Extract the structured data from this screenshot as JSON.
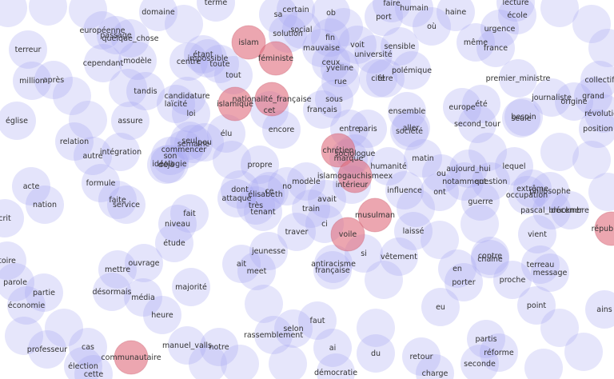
{
  "colors": {
    "bubble": "#a7a7f2",
    "highlight": "#e0707f",
    "highlight_stroke": "#c85a6a",
    "text": "#333333"
  },
  "words": [
    {
      "label": "domaine",
      "highlight": false
    },
    {
      "label": "terme",
      "highlight": false
    },
    {
      "label": "sa",
      "highlight": false
    },
    {
      "label": "certain",
      "highlight": false
    },
    {
      "label": "ob",
      "highlight": false
    },
    {
      "label": "faire",
      "highlight": false
    },
    {
      "label": "port",
      "highlight": false
    },
    {
      "label": "humain",
      "highlight": false
    },
    {
      "label": "haine",
      "highlight": false
    },
    {
      "label": "lecture",
      "highlight": false
    },
    {
      "label": "école",
      "highlight": false
    },
    {
      "label": "européenne",
      "highlight": false
    },
    {
      "label": "passage",
      "highlight": false
    },
    {
      "label": "quelque_chose",
      "highlight": false
    },
    {
      "label": "social",
      "highlight": false
    },
    {
      "label": "solution",
      "highlight": false
    },
    {
      "label": "fin",
      "highlight": false
    },
    {
      "label": "où",
      "highlight": false
    },
    {
      "label": "urgence",
      "highlight": false
    },
    {
      "label": "islam",
      "highlight": true
    },
    {
      "label": "voit",
      "highlight": false
    },
    {
      "label": "sensible",
      "highlight": false
    },
    {
      "label": "même",
      "highlight": false
    },
    {
      "label": "terreur",
      "highlight": false
    },
    {
      "label": "mauvaise",
      "highlight": false
    },
    {
      "label": "université",
      "highlight": false
    },
    {
      "label": "france",
      "highlight": false
    },
    {
      "label": "étant",
      "highlight": false
    },
    {
      "label": "féministe",
      "highlight": true
    },
    {
      "label": "modèle",
      "highlight": false
    },
    {
      "label": "cependant",
      "highlight": false
    },
    {
      "label": "impossible",
      "highlight": false
    },
    {
      "label": "centre",
      "highlight": false
    },
    {
      "label": "toute",
      "highlight": false
    },
    {
      "label": "ceux",
      "highlight": false
    },
    {
      "label": "yveline",
      "highlight": false
    },
    {
      "label": "polémique",
      "highlight": false
    },
    {
      "label": "tout",
      "highlight": false
    },
    {
      "label": "cité",
      "highlight": false
    },
    {
      "label": "être",
      "highlight": false
    },
    {
      "label": "million",
      "highlight": false
    },
    {
      "label": "après",
      "highlight": false
    },
    {
      "label": "rue",
      "highlight": false
    },
    {
      "label": "premier_ministre",
      "highlight": false
    },
    {
      "label": "collectif",
      "highlight": false
    },
    {
      "label": "tandis",
      "highlight": false
    },
    {
      "label": "candidature",
      "highlight": false
    },
    {
      "label": "nationalité_française",
      "highlight": true
    },
    {
      "label": "sous",
      "highlight": false
    },
    {
      "label": "journaliste",
      "highlight": false
    },
    {
      "label": "grand",
      "highlight": false
    },
    {
      "label": "origine",
      "highlight": false
    },
    {
      "label": "laïcité",
      "highlight": false
    },
    {
      "label": "islamique",
      "highlight": true
    },
    {
      "label": "été",
      "highlight": false
    },
    {
      "label": "europe",
      "highlight": false
    },
    {
      "label": "loi",
      "highlight": false
    },
    {
      "label": "cet",
      "highlight": false
    },
    {
      "label": "français",
      "highlight": false
    },
    {
      "label": "ensemble",
      "highlight": false
    },
    {
      "label": "besoin",
      "highlight": false
    },
    {
      "label": "seule",
      "highlight": false
    },
    {
      "label": "révolution",
      "highlight": false
    },
    {
      "label": "église",
      "highlight": false
    },
    {
      "label": "assure",
      "highlight": false
    },
    {
      "label": "encore",
      "highlight": false
    },
    {
      "label": "entre",
      "highlight": false
    },
    {
      "label": "paris",
      "highlight": false
    },
    {
      "label": "aller",
      "highlight": false
    },
    {
      "label": "société",
      "highlight": false
    },
    {
      "label": "second_tour",
      "highlight": false
    },
    {
      "label": "position",
      "highlight": false
    },
    {
      "label": "élu",
      "highlight": false
    },
    {
      "label": "seul",
      "highlight": false
    },
    {
      "label": "semaine",
      "highlight": false
    },
    {
      "label": "relation",
      "highlight": false
    },
    {
      "label": "peu",
      "highlight": false
    },
    {
      "label": "chrétien",
      "highlight": true
    },
    {
      "label": "commencer",
      "highlight": false
    },
    {
      "label": "sociologue",
      "highlight": false
    },
    {
      "label": "intégration",
      "highlight": false
    },
    {
      "label": "son",
      "highlight": false
    },
    {
      "label": "marque",
      "highlight": false
    },
    {
      "label": "autre",
      "highlight": false
    },
    {
      "label": "matin",
      "highlight": false
    },
    {
      "label": "idéologie",
      "highlight": false
    },
    {
      "label": "déjà",
      "highlight": false
    },
    {
      "label": "humanité",
      "highlight": false
    },
    {
      "label": "propre",
      "highlight": false
    },
    {
      "label": "lequel",
      "highlight": false
    },
    {
      "label": "aujourd_hui",
      "highlight": false
    },
    {
      "label": "islamogauchismeex",
      "highlight": true
    },
    {
      "label": "ou",
      "highlight": false
    },
    {
      "label": "formule",
      "highlight": false
    },
    {
      "label": "modèle",
      "highlight": false
    },
    {
      "label": "intérieur",
      "highlight": false
    },
    {
      "label": "notamment",
      "highlight": false
    },
    {
      "label": "question",
      "highlight": false
    },
    {
      "label": "acte",
      "highlight": false
    },
    {
      "label": "dont",
      "highlight": false
    },
    {
      "label": "ce",
      "highlight": false
    },
    {
      "label": "influence",
      "highlight": false
    },
    {
      "label": "ont",
      "highlight": false
    },
    {
      "label": "extrême",
      "highlight": false
    },
    {
      "label": "philosophe",
      "highlight": false
    },
    {
      "label": "occupation",
      "highlight": false
    },
    {
      "label": "élisabeth",
      "highlight": false
    },
    {
      "label": "no",
      "highlight": false
    },
    {
      "label": "faite",
      "highlight": false
    },
    {
      "label": "attaque",
      "highlight": false
    },
    {
      "label": "avait",
      "highlight": false
    },
    {
      "label": "guerre",
      "highlight": false
    },
    {
      "label": "nation",
      "highlight": false
    },
    {
      "label": "service",
      "highlight": false
    },
    {
      "label": "très",
      "highlight": false
    },
    {
      "label": "train",
      "highlight": false
    },
    {
      "label": "tenant",
      "highlight": false
    },
    {
      "label": "musulman",
      "highlight": true
    },
    {
      "label": "pascal_bruckner",
      "highlight": false
    },
    {
      "label": "décembre",
      "highlight": false
    },
    {
      "label": "fait",
      "highlight": false
    },
    {
      "label": "niveau",
      "highlight": false
    },
    {
      "label": "ci",
      "highlight": false
    },
    {
      "label": "république",
      "highlight": true
    },
    {
      "label": "crit",
      "highlight": false
    },
    {
      "label": "traver",
      "highlight": false
    },
    {
      "label": "voile",
      "highlight": true
    },
    {
      "label": "laissé",
      "highlight": false
    },
    {
      "label": "vient",
      "highlight": false
    },
    {
      "label": "étude",
      "highlight": false
    },
    {
      "label": "jeunesse",
      "highlight": false
    },
    {
      "label": "si",
      "highlight": false
    },
    {
      "label": "vêtement",
      "highlight": false
    },
    {
      "label": "contre",
      "highlight": false
    },
    {
      "label": "chaîne",
      "highlight": false
    },
    {
      "label": "toire",
      "highlight": false
    },
    {
      "label": "ouvrage",
      "highlight": false
    },
    {
      "label": "ait",
      "highlight": false
    },
    {
      "label": "antiracisme",
      "highlight": false
    },
    {
      "label": "terreau",
      "highlight": false
    },
    {
      "label": "mettre",
      "highlight": false
    },
    {
      "label": "meet",
      "highlight": false
    },
    {
      "label": "française",
      "highlight": false
    },
    {
      "label": "en",
      "highlight": false
    },
    {
      "label": "message",
      "highlight": false
    },
    {
      "label": "parole",
      "highlight": false
    },
    {
      "label": "porter",
      "highlight": false
    },
    {
      "label": "proche",
      "highlight": false
    },
    {
      "label": "partie",
      "highlight": false
    },
    {
      "label": "majorité",
      "highlight": false
    },
    {
      "label": "désormais",
      "highlight": false
    },
    {
      "label": "média",
      "highlight": false
    },
    {
      "label": "économie",
      "highlight": false
    },
    {
      "label": "point",
      "highlight": false
    },
    {
      "label": "eu",
      "highlight": false
    },
    {
      "label": "heure",
      "highlight": false
    },
    {
      "label": "ains",
      "highlight": false
    },
    {
      "label": "faut",
      "highlight": false
    },
    {
      "label": "selon",
      "highlight": false
    },
    {
      "label": "rassemblement",
      "highlight": false
    },
    {
      "label": "partis",
      "highlight": false
    },
    {
      "label": "professeur",
      "highlight": false
    },
    {
      "label": "cas",
      "highlight": false
    },
    {
      "label": "manuel_valls",
      "highlight": false
    },
    {
      "label": "notre",
      "highlight": false
    },
    {
      "label": "ai",
      "highlight": false
    },
    {
      "label": "communautaire",
      "highlight": true
    },
    {
      "label": "du",
      "highlight": false
    },
    {
      "label": "retour",
      "highlight": false
    },
    {
      "label": "réforme",
      "highlight": false
    },
    {
      "label": "élection",
      "highlight": false
    },
    {
      "label": "seconde",
      "highlight": false
    },
    {
      "label": "cette",
      "highlight": false
    },
    {
      "label": "démocratie",
      "highlight": false
    },
    {
      "label": "charge",
      "highlight": false
    }
  ]
}
